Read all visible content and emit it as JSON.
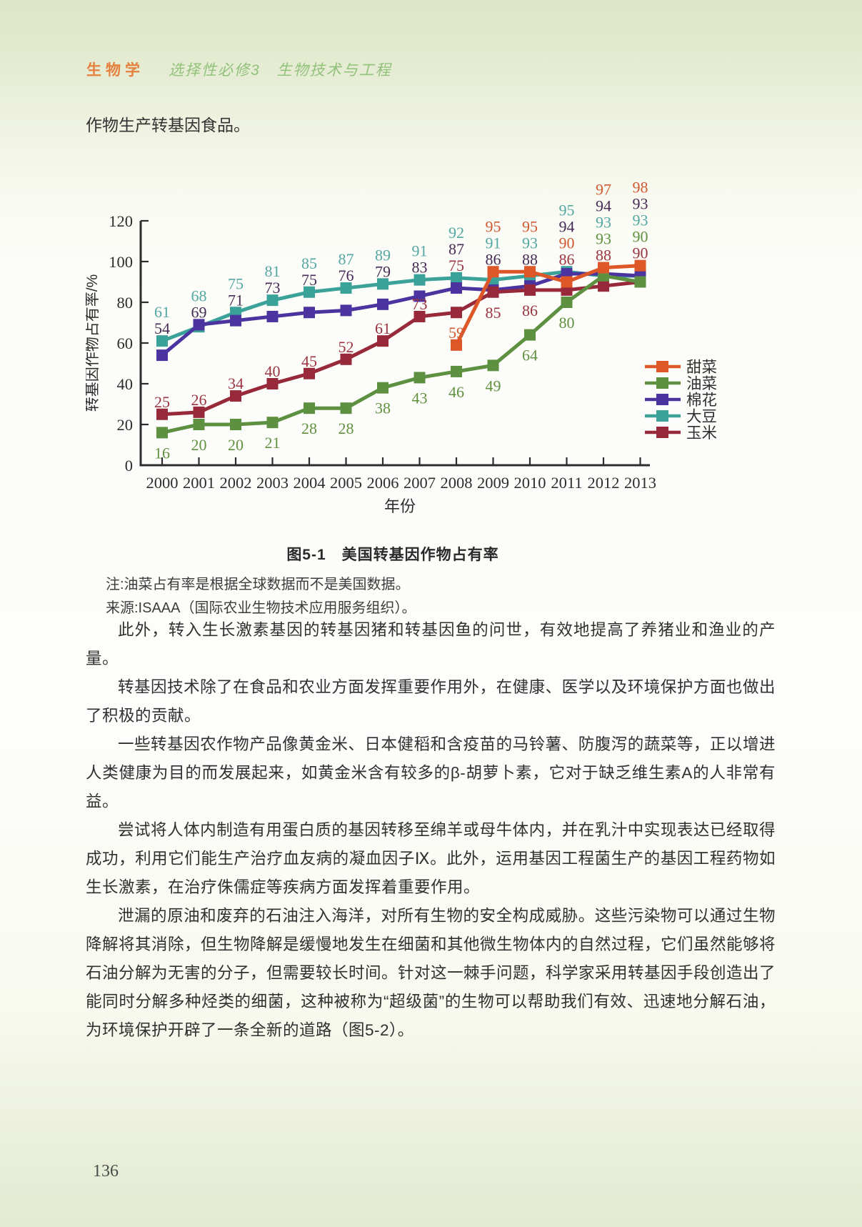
{
  "page": {
    "header": {
      "subject": "生物学",
      "module": "选择性必修3　生物技术与工程"
    },
    "intro_line": "作物生产转基因食品。",
    "page_number": "136"
  },
  "figure": {
    "caption": "图5-1　美国转基因作物占有率",
    "note": "注:油菜占有率是根据全球数据而不是美国数据。",
    "source": "来源:ISAAA（国际农业生物技术应用服务组织）。"
  },
  "chart_data": {
    "type": "line",
    "title": "图5-1 美国转基因作物占有率",
    "xlabel": "年份",
    "ylabel": "转基因作物占有率/%",
    "ylim": [
      0,
      120
    ],
    "yticks": [
      0,
      20,
      40,
      60,
      80,
      100,
      120
    ],
    "grid": false,
    "legend_position": "right",
    "categories": [
      "2000",
      "2001",
      "2002",
      "2003",
      "2004",
      "2005",
      "2006",
      "2007",
      "2008",
      "2009",
      "2010",
      "2011",
      "2012",
      "2013"
    ],
    "series": [
      {
        "name": "甜菜",
        "color": "#de5728",
        "label_color": "#d05a31",
        "values": [
          null,
          null,
          null,
          null,
          null,
          null,
          null,
          null,
          59,
          95,
          95,
          90,
          97,
          98
        ]
      },
      {
        "name": "油菜",
        "color": "#5d9040",
        "label_color": "#61913f",
        "values": [
          16,
          20,
          20,
          21,
          28,
          28,
          38,
          43,
          46,
          49,
          64,
          80,
          93,
          90
        ]
      },
      {
        "name": "棉花",
        "color": "#4b34a0",
        "label_color": "#472b55",
        "values": [
          54,
          69,
          71,
          73,
          75,
          76,
          79,
          83,
          87,
          86,
          88,
          94,
          94,
          93
        ]
      },
      {
        "name": "大豆",
        "color": "#3ba29a",
        "label_color": "#55a7a2",
        "values": [
          61,
          68,
          75,
          81,
          85,
          87,
          89,
          91,
          92,
          91,
          93,
          95,
          93,
          93
        ]
      },
      {
        "name": "玉米",
        "color": "#97293a",
        "label_color": "#9a3440",
        "values": [
          25,
          26,
          34,
          40,
          45,
          52,
          61,
          73,
          75,
          85,
          86,
          86,
          88,
          90
        ]
      }
    ],
    "draw_order": [
      3,
      2,
      4,
      1,
      0
    ],
    "label_layout": {
      "stacks": [
        [
          "大豆",
          "棉花"
        ],
        [
          "大豆",
          "棉花"
        ],
        [
          "大豆",
          "棉花"
        ],
        [
          "大豆",
          "棉花"
        ],
        [
          "大豆",
          "棉花"
        ],
        [
          "大豆",
          "棉花"
        ],
        [
          "大豆",
          "棉花"
        ],
        [
          "大豆",
          "棉花"
        ],
        [
          "大豆",
          "棉花",
          "玉米"
        ],
        [
          "甜菜",
          "大豆",
          "棉花"
        ],
        [
          "甜菜",
          "大豆",
          "棉花"
        ],
        [
          "大豆",
          "棉花",
          "甜菜",
          "玉米"
        ],
        [
          "甜菜",
          "棉花",
          "大豆",
          "油菜",
          "玉米"
        ],
        [
          "甜菜",
          "棉花",
          "大豆",
          "油菜",
          "玉米"
        ]
      ],
      "above_own": [
        [
          "玉米"
        ],
        [
          "玉米"
        ],
        [
          "玉米"
        ],
        [
          "玉米"
        ],
        [
          "玉米"
        ],
        [
          "玉米"
        ],
        [
          "玉米"
        ],
        [
          "玉米"
        ],
        [
          "甜菜"
        ],
        [],
        [],
        [],
        [],
        []
      ],
      "below_own": [
        [
          "油菜"
        ],
        [
          "油菜"
        ],
        [
          "油菜"
        ],
        [
          "油菜"
        ],
        [
          "油菜"
        ],
        [
          "油菜"
        ],
        [
          "油菜"
        ],
        [
          "油菜"
        ],
        [
          "油菜"
        ],
        [
          "油菜",
          "玉米"
        ],
        [
          "油菜",
          "玉米"
        ],
        [
          "油菜"
        ],
        [],
        []
      ]
    }
  },
  "paragraphs": [
    "此外，转入生长激素基因的转基因猪和转基因鱼的问世，有效地提高了养猪业和渔业的产量。",
    "转基因技术除了在食品和农业方面发挥重要作用外，在健康、医学以及环境保护方面也做出了积极的贡献。",
    "一些转基因农作物产品像黄金米、日本健稻和含疫苗的马铃薯、防腹泻的蔬菜等，正以增进人类健康为目的而发展起来，如黄金米含有较多的β-胡萝卜素，它对于缺乏维生素A的人非常有益。",
    "尝试将人体内制造有用蛋白质的基因转移至绵羊或母牛体内，并在乳汁中实现表达已经取得成功，利用它们能生产治疗血友病的凝血因子Ⅸ。此外，运用基因工程菌生产的基因工程药物如生长激素，在治疗侏儒症等疾病方面发挥着重要作用。",
    "泄漏的原油和废弃的石油注入海洋，对所有生物的安全构成威胁。这些污染物可以通过生物降解将其消除，但生物降解是缓慢地发生在细菌和其他微生物体内的自然过程，它们虽然能够将石油分解为无害的分子，但需要较长时间。针对这一棘手问题，科学家采用转基因手段创造出了能同时分解多种烃类的细菌，这种被称为“超级菌”的生物可以帮助我们有效、迅速地分解石油，为环境保护开辟了一条全新的道路（图5-2）。"
  ]
}
